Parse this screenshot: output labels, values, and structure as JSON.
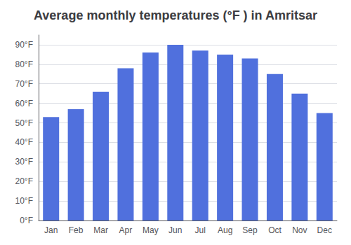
{
  "chart_data": {
    "type": "bar",
    "title": "Average monthly temperatures (°F ) in Amritsar",
    "categories": [
      "Jan",
      "Feb",
      "Mar",
      "Apr",
      "May",
      "Jun",
      "Jul",
      "Aug",
      "Sep",
      "Oct",
      "Nov",
      "Dec"
    ],
    "values": [
      53,
      57,
      66,
      78,
      86,
      90,
      87,
      85,
      83,
      75,
      65,
      55
    ],
    "ylim": [
      0,
      95
    ],
    "yticks": [
      {
        "value": 0,
        "label": "0°F"
      },
      {
        "value": 10,
        "label": "10°F"
      },
      {
        "value": 20,
        "label": "20°F"
      },
      {
        "value": 30,
        "label": "30°F"
      },
      {
        "value": 40,
        "label": "40°F"
      },
      {
        "value": 50,
        "label": "50°F"
      },
      {
        "value": 60,
        "label": "60°F"
      },
      {
        "value": 70,
        "label": "70°F"
      },
      {
        "value": 80,
        "label": "80°F"
      },
      {
        "value": 90,
        "label": "90°F"
      }
    ],
    "grid": true
  }
}
